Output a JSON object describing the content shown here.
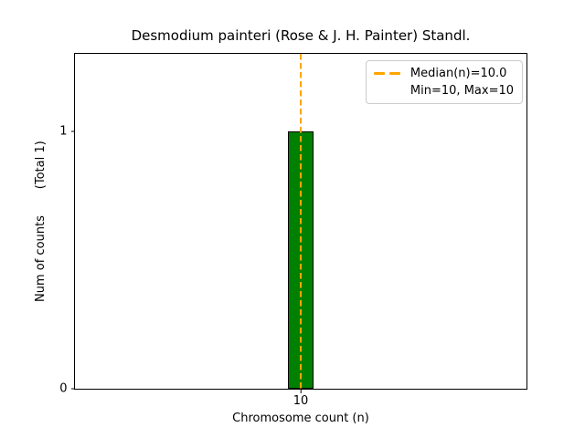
{
  "chart_data": {
    "type": "bar",
    "title": "Desmodium painteri (Rose & J. H. Painter) Standl.",
    "xlabel": "Chromosome count (n)",
    "ylabel": "Num of counts       (Total 1)",
    "categories": [
      "10"
    ],
    "values": [
      1
    ],
    "total_count": 1,
    "ylim": [
      0,
      1.3
    ],
    "yticks": [
      {
        "value": 0,
        "label": "0"
      },
      {
        "value": 1,
        "label": "1"
      }
    ],
    "xticks": [
      {
        "label": "10"
      }
    ],
    "bar_color": "#008000",
    "bar_edge_color": "#000000",
    "median_line": {
      "value": 10.0,
      "color": "#FFA500",
      "style": "dashed"
    },
    "legend": {
      "position": "upper right",
      "entries": [
        {
          "handle": "orange-dashed-line",
          "label": "Median(n)=10.0"
        },
        {
          "handle": "none",
          "label": "Min=10, Max=10"
        }
      ]
    },
    "grid": false
  }
}
